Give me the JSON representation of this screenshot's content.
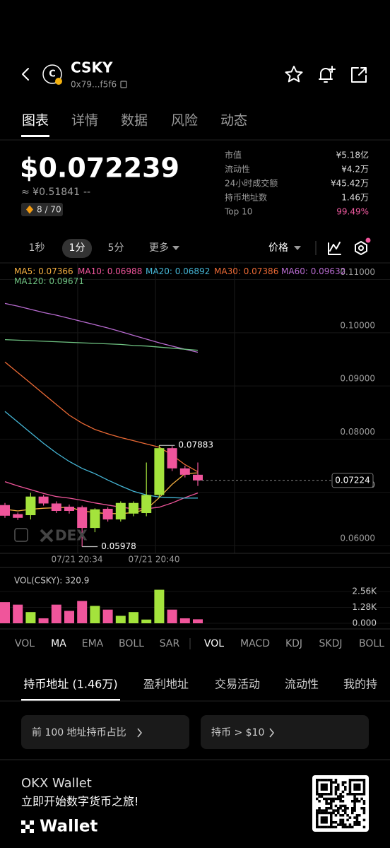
{
  "header": {
    "icon_letter": "C",
    "symbol": "CSKY",
    "address": "0x79...f5f6"
  },
  "tabs": [
    "图表",
    "详情",
    "数据",
    "风险",
    "动态"
  ],
  "price": {
    "usd": "$0.072239",
    "cny": "≈ ¥0.51841",
    "change": "--",
    "score": "8 / 70"
  },
  "stats": [
    [
      "市值",
      "¥5.18亿"
    ],
    [
      "流动性",
      "¥4.2万"
    ],
    [
      "24小时成交额",
      "¥45.42万"
    ],
    [
      "持币地址数",
      "1.46万"
    ],
    [
      "Top 10",
      "99.49%"
    ]
  ],
  "intervals": [
    "1秒",
    "1分",
    "5分",
    "更多"
  ],
  "price_selector": "价格",
  "chart": {
    "type": "candlestick",
    "up_color": "#a4e33c",
    "down_color": "#f0559b",
    "candles": [
      {
        "open": 0.0676,
        "high": 0.068,
        "low": 0.0652,
        "close": 0.0656
      },
      {
        "open": 0.0659,
        "high": 0.0662,
        "low": 0.0648,
        "close": 0.0652
      },
      {
        "open": 0.0657,
        "high": 0.0699,
        "low": 0.0649,
        "close": 0.0692
      },
      {
        "open": 0.0692,
        "high": 0.0695,
        "low": 0.0675,
        "close": 0.0679
      },
      {
        "open": 0.0679,
        "high": 0.0683,
        "low": 0.0661,
        "close": 0.0665
      },
      {
        "open": 0.0673,
        "high": 0.0677,
        "low": 0.066,
        "close": 0.0665
      },
      {
        "open": 0.0672,
        "high": 0.0675,
        "low": 0.05978,
        "close": 0.0633
      },
      {
        "open": 0.0633,
        "high": 0.067,
        "low": 0.0625,
        "close": 0.0668
      },
      {
        "open": 0.0669,
        "high": 0.0672,
        "low": 0.0645,
        "close": 0.0649
      },
      {
        "open": 0.0649,
        "high": 0.0683,
        "low": 0.0645,
        "close": 0.068
      },
      {
        "open": 0.066,
        "high": 0.0683,
        "low": 0.0655,
        "close": 0.068
      },
      {
        "open": 0.0661,
        "high": 0.0756,
        "low": 0.0655,
        "close": 0.0695
      },
      {
        "open": 0.0695,
        "high": 0.07883,
        "low": 0.069,
        "close": 0.0783
      },
      {
        "open": 0.0783,
        "high": 0.0787,
        "low": 0.074,
        "close": 0.0745
      },
      {
        "open": 0.0745,
        "high": 0.075,
        "low": 0.0728,
        "close": 0.0733
      },
      {
        "open": 0.0733,
        "high": 0.0756,
        "low": 0.0712,
        "close": 0.07224
      }
    ],
    "ma": [
      {
        "name": "MA5",
        "color": "#f5b041",
        "values": [
          0.0668,
          0.0665,
          0.0668,
          0.067,
          0.0671,
          0.0672,
          0.0665,
          0.0662,
          0.066,
          0.066,
          0.0662,
          0.0668,
          0.069,
          0.0715,
          0.0735,
          0.07366
        ]
      },
      {
        "name": "MA10",
        "color": "#f0559b",
        "values": [
          0.072,
          0.0712,
          0.0705,
          0.0698,
          0.0692,
          0.0689,
          0.0685,
          0.068,
          0.0676,
          0.0672,
          0.0669,
          0.0669,
          0.0672,
          0.068,
          0.069,
          0.06988
        ]
      },
      {
        "name": "MA20",
        "color": "#45b6d6",
        "values": [
          0.0852,
          0.0832,
          0.0812,
          0.0792,
          0.0774,
          0.0758,
          0.0745,
          0.0735,
          0.0723,
          0.0712,
          0.0702,
          0.0695,
          0.0691,
          0.069,
          0.0689,
          0.06892
        ]
      },
      {
        "name": "MA30",
        "color": "#ec6a35",
        "values": [
          0.0945,
          0.0925,
          0.0905,
          0.0885,
          0.0865,
          0.0845,
          0.083,
          0.0818,
          0.081,
          0.0803,
          0.0797,
          0.0791,
          0.0785,
          0.077,
          0.0752,
          0.07386
        ]
      },
      {
        "name": "MA60",
        "color": "#b86bd0",
        "values": [
          0.1055,
          0.105,
          0.1044,
          0.1038,
          0.1033,
          0.1027,
          0.1021,
          0.1015,
          0.1009,
          0.1002,
          0.0995,
          0.0988,
          0.0981,
          0.0975,
          0.0969,
          0.09632
        ]
      },
      {
        "name": "MA120",
        "color": "#6fc382",
        "values": [
          0.0987,
          0.0986,
          0.0985,
          0.0984,
          0.0983,
          0.0982,
          0.0981,
          0.098,
          0.0979,
          0.0978,
          0.0976,
          0.0975,
          0.0973,
          0.0971,
          0.0969,
          0.09671
        ]
      }
    ],
    "ylim": [
      0.05853,
      0.11313
    ],
    "yticks": [
      {
        "value": 0.11,
        "label": "0.11000"
      },
      {
        "value": 0.1,
        "label": "0.10000"
      },
      {
        "value": 0.09,
        "label": "0.09000"
      },
      {
        "value": 0.08,
        "label": "0.08000"
      },
      {
        "value": 0.07,
        "label": "0.07000"
      },
      {
        "value": 0.06,
        "label": "0.06000"
      }
    ],
    "x_labels": [
      "07/21 20:34",
      "07/21 20:40"
    ],
    "watermark": "DEX"
  },
  "volume": {
    "label": "VOL(CSKY):",
    "values": [
      1700,
      1500,
      900,
      400,
      1500,
      1000,
      1800,
      1400,
      1100,
      600,
      900,
      300,
      2700,
      1100,
      400,
      320.9
    ],
    "ylim": [
      0,
      2560
    ],
    "yticks": [
      {
        "value": 2560,
        "label": "2.56K"
      },
      {
        "value": 1280,
        "label": "1.28K"
      },
      {
        "value": 0,
        "label": "0.000"
      }
    ]
  },
  "indicators": [
    "VOL",
    "MA",
    "EMA",
    "BOLL",
    "SAR",
    "VOL",
    "MACD",
    "KDJ",
    "SKDJ",
    "BOLL"
  ],
  "holder_tabs": [
    "持币地址 (1.46万)",
    "盈利地址",
    "交易活动",
    "流动性",
    "我的持"
  ],
  "cards": [
    "前 100 地址持币占比",
    "持币 > $10"
  ],
  "footer": {
    "brand": "OKX Wallet",
    "slogan": "立即开始数字货币之旅!",
    "logo": "Wallet"
  }
}
